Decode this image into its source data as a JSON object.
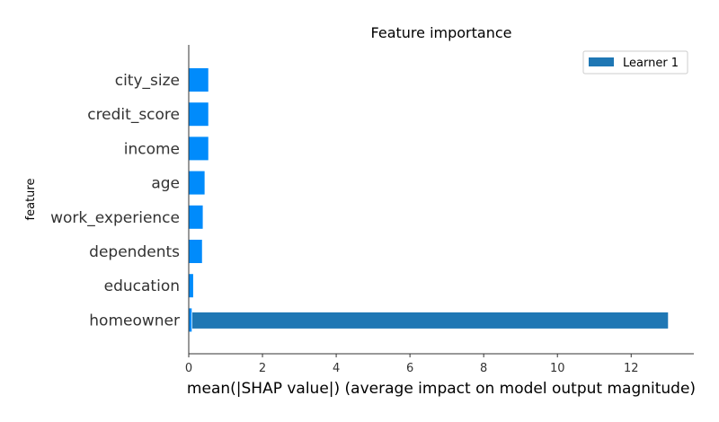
{
  "chart_data": {
    "type": "bar",
    "orientation": "horizontal",
    "title": "Feature importance",
    "xlabel": "mean(|SHAP value|) (average impact on model output magnitude)",
    "ylabel": "feature",
    "categories": [
      "city_size",
      "credit_score",
      "income",
      "age",
      "work_experience",
      "dependents",
      "education",
      "homeowner"
    ],
    "x_ticks": [
      "0",
      "2",
      "4",
      "6",
      "8",
      "10",
      "12"
    ],
    "xlim": [
      0,
      13.7
    ],
    "grid": false,
    "legend_position": "top-right",
    "series": [
      {
        "values": [
          0.53,
          0.53,
          0.53,
          0.43,
          0.38,
          0.36,
          0.12,
          0.08
        ],
        "color": "#008bfb"
      },
      {
        "name": "Learner 1",
        "values": [
          0,
          0,
          0,
          0,
          0,
          0,
          0,
          13.0
        ],
        "color": "#1f77b4"
      }
    ]
  }
}
